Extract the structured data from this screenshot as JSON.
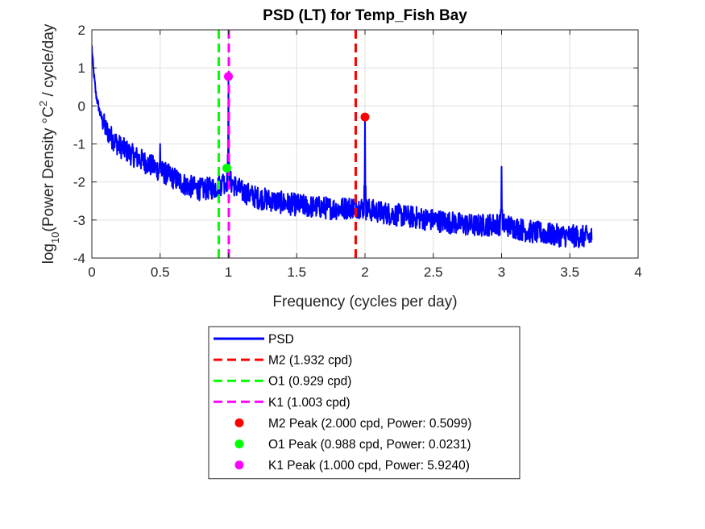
{
  "chart_data": {
    "type": "line",
    "title": "PSD (LT) for Temp_Fish Bay",
    "xlabel": "Frequency (cycles per day)",
    "ylabel_parts": [
      "log",
      "10",
      "(Power Density ",
      "°",
      "C",
      "2",
      " / cycle/day"
    ],
    "xlim": [
      0,
      4
    ],
    "ylim": [
      -4,
      2
    ],
    "xticks": [
      0,
      0.5,
      1,
      1.5,
      2,
      2.5,
      3,
      3.5,
      4
    ],
    "yticks": [
      -4,
      -3,
      -2,
      -1,
      0,
      1,
      2
    ],
    "xtick_labels": [
      "0",
      "0.5",
      "1",
      "1.5",
      "2",
      "2.5",
      "3",
      "3.5",
      "4"
    ],
    "ytick_labels": [
      "-4",
      "-3",
      "-2",
      "-1",
      "0",
      "1",
      "2"
    ],
    "grid": true,
    "legend_position": "bottom-outside",
    "psd": {
      "name": "PSD",
      "color": "#0000ff",
      "x_max": 3.66,
      "baseline_points": [
        [
          0.0,
          1.55
        ],
        [
          0.01,
          1.0
        ],
        [
          0.03,
          0.3
        ],
        [
          0.06,
          -0.2
        ],
        [
          0.1,
          -0.6
        ],
        [
          0.15,
          -0.85
        ],
        [
          0.2,
          -1.05
        ],
        [
          0.3,
          -1.3
        ],
        [
          0.4,
          -1.5
        ],
        [
          0.5,
          -1.7
        ],
        [
          0.6,
          -1.9
        ],
        [
          0.7,
          -2.1
        ],
        [
          0.8,
          -2.2
        ],
        [
          0.9,
          -2.15
        ],
        [
          1.0,
          -1.95
        ],
        [
          1.1,
          -2.25
        ],
        [
          1.2,
          -2.4
        ],
        [
          1.4,
          -2.55
        ],
        [
          1.6,
          -2.65
        ],
        [
          1.8,
          -2.7
        ],
        [
          1.95,
          -2.65
        ],
        [
          2.05,
          -2.75
        ],
        [
          2.2,
          -2.85
        ],
        [
          2.4,
          -2.95
        ],
        [
          2.6,
          -3.05
        ],
        [
          2.8,
          -3.15
        ],
        [
          3.0,
          -3.1
        ],
        [
          3.2,
          -3.3
        ],
        [
          3.4,
          -3.4
        ],
        [
          3.66,
          -3.45
        ]
      ],
      "peaks": [
        {
          "x": 0.5,
          "y": -1.0
        },
        {
          "x": 0.96,
          "y": -1.8
        },
        {
          "x": 1.0,
          "y": 0.77
        },
        {
          "x": 1.93,
          "y": -2.5
        },
        {
          "x": 2.0,
          "y": -0.29
        },
        {
          "x": 3.0,
          "y": -1.6
        }
      ],
      "noise_amplitude": 0.3
    },
    "vlines": [
      {
        "name": "M2 (1.932 cpd)",
        "x": 1.932,
        "color": "#ff0000"
      },
      {
        "name": "O1 (0.929 cpd)",
        "x": 0.929,
        "color": "#00ff00"
      },
      {
        "name": "K1 (1.003 cpd)",
        "x": 1.003,
        "color": "#ff00ff"
      }
    ],
    "markers": [
      {
        "name": "M2 Peak (2.000 cpd, Power: 0.5099)",
        "x": 2.0,
        "y": -0.2925,
        "color": "#ff0000"
      },
      {
        "name": "O1 Peak (0.988 cpd, Power: 0.0231)",
        "x": 0.988,
        "y": -1.636,
        "color": "#00ff00"
      },
      {
        "name": "K1 Peak (1.000 cpd, Power: 5.9240)",
        "x": 1.0,
        "y": 0.7726,
        "color": "#ff00ff"
      }
    ]
  }
}
